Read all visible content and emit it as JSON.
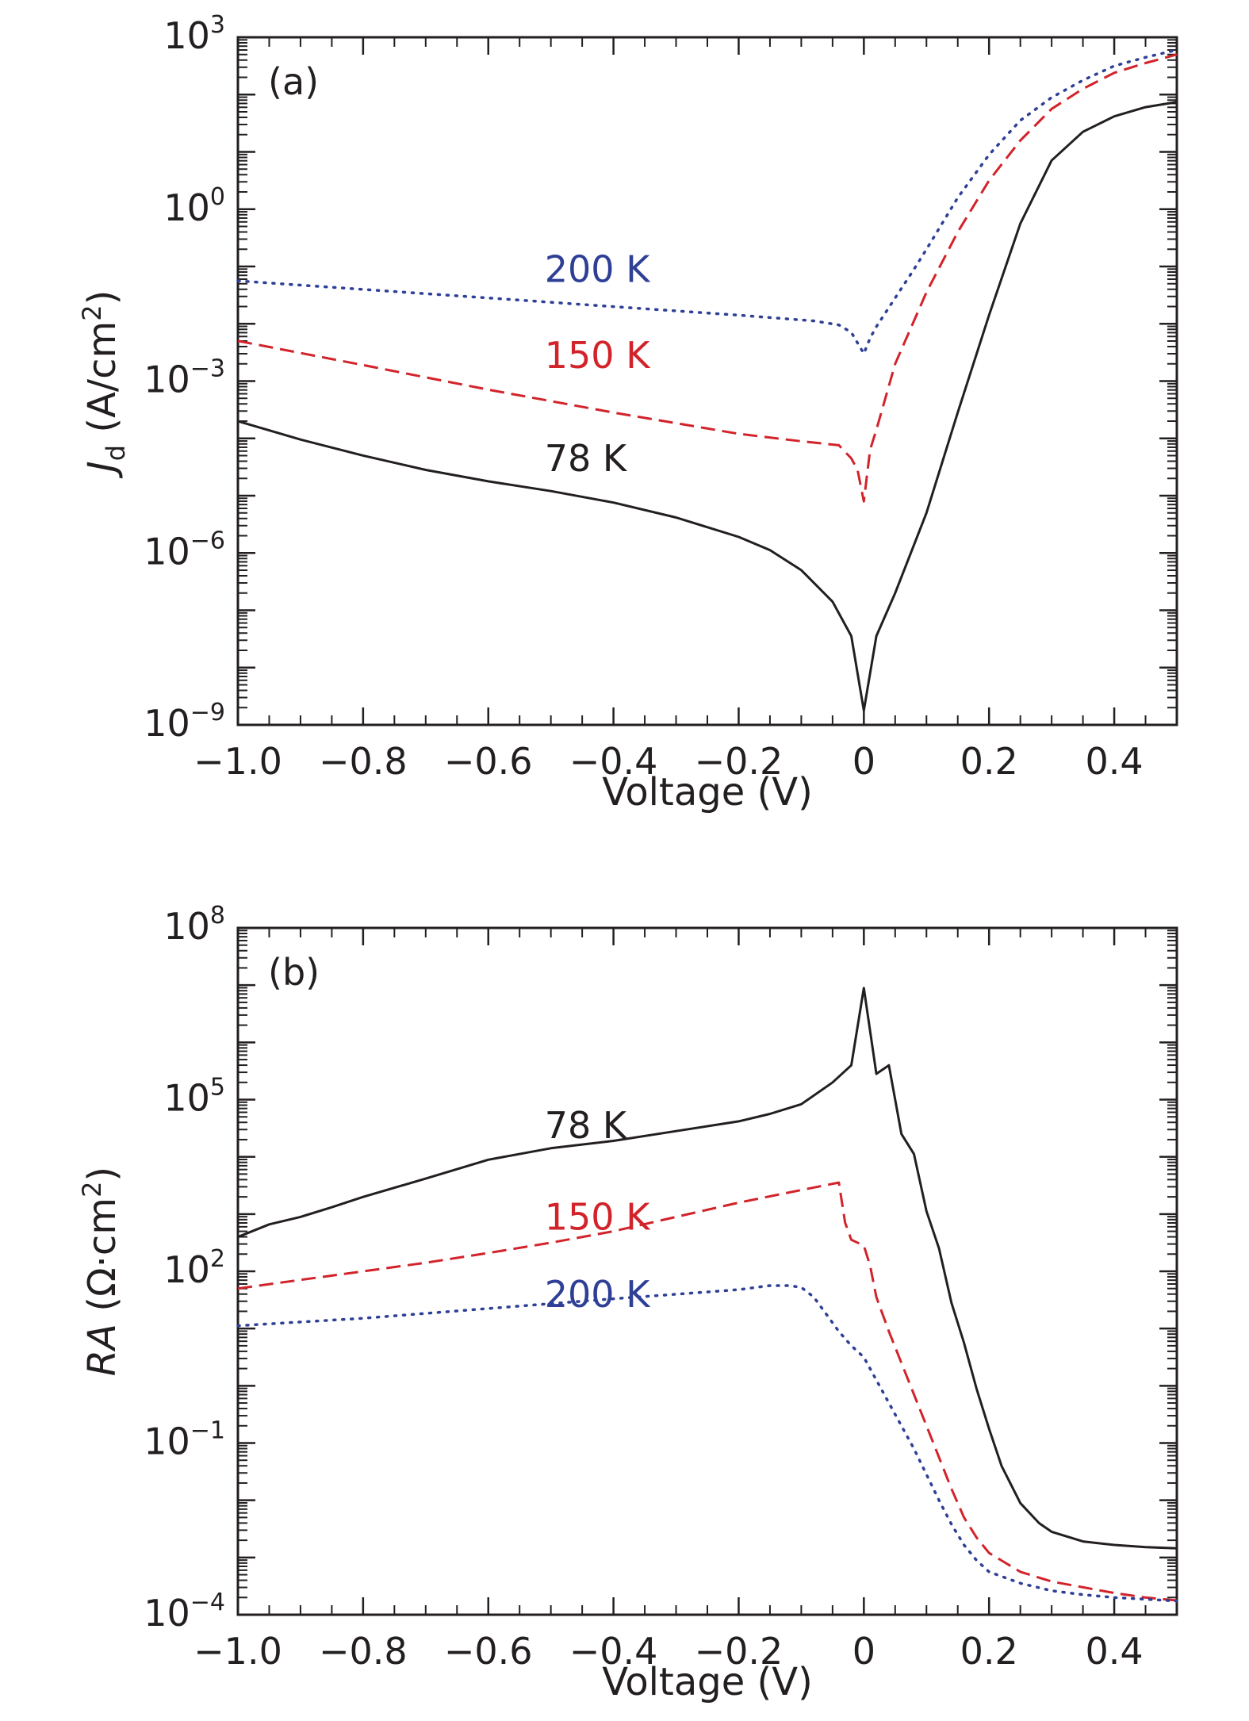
{
  "chart_data": [
    {
      "type": "line",
      "panel_label": "(a)",
      "xlabel": "Voltage (V)",
      "ylabel_italic": "J",
      "ylabel_sub": "d",
      "ylabel_rest": " (A/cm",
      "ylabel_sup": "2",
      "ylabel_close": ")",
      "xlim": [
        -1.0,
        0.5
      ],
      "ylim_log10": [
        -9,
        3
      ],
      "y_scale": "log",
      "x_ticks": [
        {
          "value": -1.0,
          "label": "−1.0"
        },
        {
          "value": -0.8,
          "label": "−0.8"
        },
        {
          "value": -0.6,
          "label": "−0.6"
        },
        {
          "value": -0.4,
          "label": "−0.4"
        },
        {
          "value": -0.2,
          "label": "−0.2"
        },
        {
          "value": 0,
          "label": "0"
        },
        {
          "value": 0.2,
          "label": "0.2"
        },
        {
          "value": 0.4,
          "label": "0.4"
        }
      ],
      "y_ticks": [
        {
          "exp": 3,
          "base": "10",
          "sup": "3"
        },
        {
          "exp": 0,
          "base": "10",
          "sup": "0"
        },
        {
          "exp": -3,
          "base": "10",
          "sup": "−3"
        },
        {
          "exp": -6,
          "base": "10",
          "sup": "−6"
        },
        {
          "exp": -9,
          "base": "10",
          "sup": "−9"
        }
      ],
      "grid": false,
      "series": [
        {
          "name": "200 K",
          "color": "#2e3f96",
          "style": "dotted",
          "label_at": {
            "x": -0.51,
            "y_log10": -1.05
          },
          "points": [
            [
              -1.0,
              -1.25
            ],
            [
              -0.8,
              -1.4
            ],
            [
              -0.6,
              -1.55
            ],
            [
              -0.4,
              -1.7
            ],
            [
              -0.2,
              -1.85
            ],
            [
              -0.08,
              -1.95
            ],
            [
              -0.04,
              -2.02
            ],
            [
              -0.02,
              -2.15
            ],
            [
              0.0,
              -2.52
            ],
            [
              0.01,
              -2.25
            ],
            [
              0.02,
              -2.05
            ],
            [
              0.05,
              -1.55
            ],
            [
              0.08,
              -1.05
            ],
            [
              0.1,
              -0.7
            ],
            [
              0.15,
              0.2
            ],
            [
              0.2,
              0.95
            ],
            [
              0.25,
              1.55
            ],
            [
              0.3,
              1.95
            ],
            [
              0.35,
              2.25
            ],
            [
              0.4,
              2.5
            ],
            [
              0.45,
              2.65
            ],
            [
              0.5,
              2.78
            ]
          ]
        },
        {
          "name": "150 K",
          "color": "#d2232a",
          "style": "dashed",
          "label_at": {
            "x": -0.51,
            "y_log10": -2.55
          },
          "points": [
            [
              -1.0,
              -2.3
            ],
            [
              -0.8,
              -2.72
            ],
            [
              -0.6,
              -3.15
            ],
            [
              -0.4,
              -3.55
            ],
            [
              -0.2,
              -3.92
            ],
            [
              -0.1,
              -4.05
            ],
            [
              -0.04,
              -4.12
            ],
            [
              -0.02,
              -4.35
            ],
            [
              -0.01,
              -4.55
            ],
            [
              0.0,
              -5.1
            ],
            [
              0.01,
              -4.2
            ],
            [
              0.02,
              -3.85
            ],
            [
              0.05,
              -2.7
            ],
            [
              0.1,
              -1.45
            ],
            [
              0.15,
              -0.4
            ],
            [
              0.2,
              0.5
            ],
            [
              0.25,
              1.2
            ],
            [
              0.3,
              1.75
            ],
            [
              0.35,
              2.1
            ],
            [
              0.4,
              2.38
            ],
            [
              0.45,
              2.55
            ],
            [
              0.5,
              2.7
            ]
          ]
        },
        {
          "name": "78 K",
          "color": "#231f20",
          "style": "solid",
          "label_at": {
            "x": -0.51,
            "y_log10": -4.35
          },
          "points": [
            [
              -1.0,
              -3.7
            ],
            [
              -0.9,
              -4.02
            ],
            [
              -0.8,
              -4.3
            ],
            [
              -0.7,
              -4.55
            ],
            [
              -0.6,
              -4.75
            ],
            [
              -0.5,
              -4.92
            ],
            [
              -0.4,
              -5.12
            ],
            [
              -0.3,
              -5.38
            ],
            [
              -0.2,
              -5.72
            ],
            [
              -0.15,
              -5.95
            ],
            [
              -0.1,
              -6.3
            ],
            [
              -0.05,
              -6.85
            ],
            [
              -0.02,
              -7.45
            ],
            [
              0.0,
              -8.75
            ],
            [
              0.02,
              -7.45
            ],
            [
              0.05,
              -6.7
            ],
            [
              0.1,
              -5.3
            ],
            [
              0.15,
              -3.55
            ],
            [
              0.2,
              -1.85
            ],
            [
              0.25,
              -0.25
            ],
            [
              0.3,
              0.85
            ],
            [
              0.35,
              1.35
            ],
            [
              0.4,
              1.62
            ],
            [
              0.45,
              1.78
            ],
            [
              0.5,
              1.87
            ]
          ]
        }
      ]
    },
    {
      "type": "line",
      "panel_label": "(b)",
      "xlabel": "Voltage (V)",
      "ylabel_italic": "RA",
      "ylabel_rest": " (Ω·cm",
      "ylabel_sup": "2",
      "ylabel_close": ")",
      "xlim": [
        -1.0,
        0.5
      ],
      "ylim_log10": [
        -4,
        8
      ],
      "y_scale": "log",
      "x_ticks": [
        {
          "value": -1.0,
          "label": "−1.0"
        },
        {
          "value": -0.8,
          "label": "−0.8"
        },
        {
          "value": -0.6,
          "label": "−0.6"
        },
        {
          "value": -0.4,
          "label": "−0.4"
        },
        {
          "value": -0.2,
          "label": "−0.2"
        },
        {
          "value": 0,
          "label": "0"
        },
        {
          "value": 0.2,
          "label": "0.2"
        },
        {
          "value": 0.4,
          "label": "0.4"
        }
      ],
      "y_ticks": [
        {
          "exp": 8,
          "base": "10",
          "sup": "8"
        },
        {
          "exp": 5,
          "base": "10",
          "sup": "5"
        },
        {
          "exp": 2,
          "base": "10",
          "sup": "2"
        },
        {
          "exp": -1,
          "base": "10",
          "sup": "−1"
        },
        {
          "exp": -4,
          "base": "10",
          "sup": "−4"
        }
      ],
      "grid": false,
      "series": [
        {
          "name": "78 K",
          "color": "#231f20",
          "style": "solid",
          "label_at": {
            "x": -0.51,
            "y_log10": 4.55
          },
          "points": [
            [
              -1.0,
              2.6
            ],
            [
              -0.95,
              2.82
            ],
            [
              -0.9,
              2.95
            ],
            [
              -0.85,
              3.12
            ],
            [
              -0.8,
              3.3
            ],
            [
              -0.7,
              3.62
            ],
            [
              -0.6,
              3.95
            ],
            [
              -0.5,
              4.15
            ],
            [
              -0.4,
              4.28
            ],
            [
              -0.3,
              4.45
            ],
            [
              -0.2,
              4.62
            ],
            [
              -0.15,
              4.75
            ],
            [
              -0.1,
              4.92
            ],
            [
              -0.05,
              5.3
            ],
            [
              -0.02,
              5.6
            ],
            [
              0.0,
              6.95
            ],
            [
              0.02,
              5.45
            ],
            [
              0.04,
              5.6
            ],
            [
              0.06,
              4.4
            ],
            [
              0.08,
              4.05
            ],
            [
              0.1,
              3.05
            ],
            [
              0.12,
              2.4
            ],
            [
              0.14,
              1.45
            ],
            [
              0.16,
              0.75
            ],
            [
              0.18,
              -0.05
            ],
            [
              0.2,
              -0.75
            ],
            [
              0.22,
              -1.4
            ],
            [
              0.25,
              -2.05
            ],
            [
              0.28,
              -2.4
            ],
            [
              0.3,
              -2.55
            ],
            [
              0.35,
              -2.72
            ],
            [
              0.4,
              -2.78
            ],
            [
              0.45,
              -2.82
            ],
            [
              0.5,
              -2.84
            ]
          ]
        },
        {
          "name": "150 K",
          "color": "#d2232a",
          "style": "dashed",
          "label_at": {
            "x": -0.51,
            "y_log10": 2.95
          },
          "points": [
            [
              -1.0,
              1.7
            ],
            [
              -0.9,
              1.85
            ],
            [
              -0.8,
              2.0
            ],
            [
              -0.7,
              2.15
            ],
            [
              -0.6,
              2.32
            ],
            [
              -0.5,
              2.5
            ],
            [
              -0.4,
              2.7
            ],
            [
              -0.3,
              2.95
            ],
            [
              -0.2,
              3.2
            ],
            [
              -0.1,
              3.42
            ],
            [
              -0.04,
              3.55
            ],
            [
              -0.03,
              2.85
            ],
            [
              -0.02,
              2.55
            ],
            [
              0.0,
              2.45
            ],
            [
              0.01,
              2.1
            ],
            [
              0.02,
              1.55
            ],
            [
              0.04,
              0.95
            ],
            [
              0.06,
              0.4
            ],
            [
              0.08,
              -0.15
            ],
            [
              0.1,
              -0.7
            ],
            [
              0.12,
              -1.25
            ],
            [
              0.14,
              -1.8
            ],
            [
              0.16,
              -2.3
            ],
            [
              0.18,
              -2.65
            ],
            [
              0.2,
              -2.92
            ],
            [
              0.25,
              -3.25
            ],
            [
              0.3,
              -3.42
            ],
            [
              0.35,
              -3.52
            ],
            [
              0.4,
              -3.62
            ],
            [
              0.45,
              -3.7
            ],
            [
              0.5,
              -3.75
            ]
          ]
        },
        {
          "name": "200 K",
          "color": "#2e3f96",
          "style": "dotted",
          "label_at": {
            "x": -0.51,
            "y_log10": 1.6
          },
          "points": [
            [
              -1.0,
              1.05
            ],
            [
              -0.8,
              1.18
            ],
            [
              -0.6,
              1.35
            ],
            [
              -0.4,
              1.52
            ],
            [
              -0.3,
              1.6
            ],
            [
              -0.2,
              1.68
            ],
            [
              -0.15,
              1.75
            ],
            [
              -0.12,
              1.75
            ],
            [
              -0.1,
              1.72
            ],
            [
              -0.08,
              1.55
            ],
            [
              -0.06,
              1.25
            ],
            [
              -0.04,
              0.95
            ],
            [
              -0.02,
              0.7
            ],
            [
              0.0,
              0.5
            ],
            [
              0.02,
              0.1
            ],
            [
              0.04,
              -0.3
            ],
            [
              0.06,
              -0.7
            ],
            [
              0.08,
              -1.1
            ],
            [
              0.1,
              -1.55
            ],
            [
              0.12,
              -2.0
            ],
            [
              0.14,
              -2.42
            ],
            [
              0.16,
              -2.78
            ],
            [
              0.18,
              -3.05
            ],
            [
              0.2,
              -3.25
            ],
            [
              0.25,
              -3.45
            ],
            [
              0.3,
              -3.58
            ],
            [
              0.35,
              -3.65
            ],
            [
              0.4,
              -3.7
            ],
            [
              0.45,
              -3.73
            ],
            [
              0.5,
              -3.76
            ]
          ]
        }
      ]
    }
  ]
}
